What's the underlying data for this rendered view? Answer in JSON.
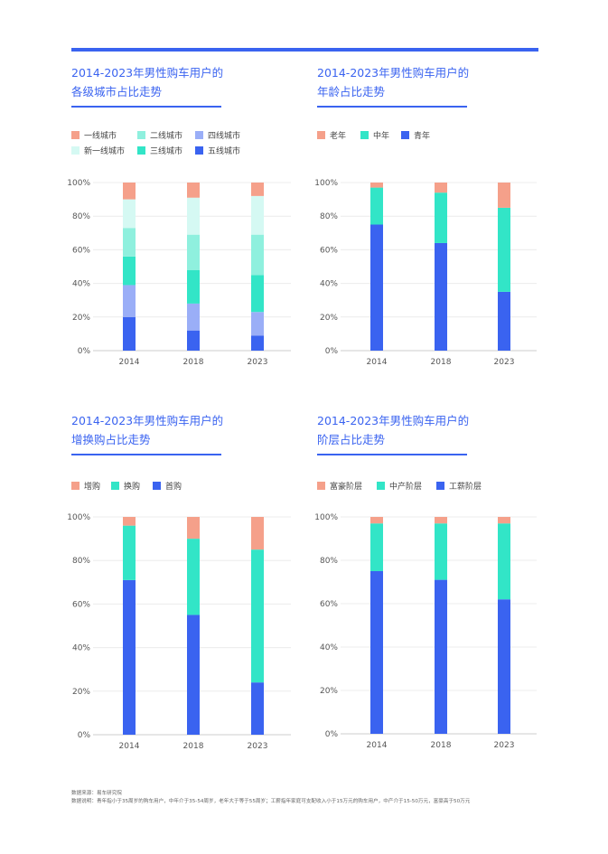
{
  "colors": {
    "accent": "#3a63f0",
    "tier1": "#f5a08a",
    "tier_new1": "#d5f9f3",
    "tier2": "#8ff0de",
    "tier3": "#32e5c7",
    "tier4": "#9aaef7",
    "tier5": "#3a63f0"
  },
  "footer": {
    "source": "数据来源：易车研究院",
    "note": "数据说明：青年指小于35周岁的购车用户，中年介于35-54周岁，老年大于等于55周岁；工薪指年家庭可支配收入小于15万元的购车用户，中产介于15-50万元，富豪高于50万元"
  },
  "charts": [
    {
      "title_line1": "2014-2023年男性购车用户的",
      "title_line2": "各级城市占比走势",
      "legend": [
        {
          "label": "一线城市",
          "color": "#f5a08a"
        },
        {
          "label": "二线城市",
          "color": "#8ff0de"
        },
        {
          "label": "四线城市",
          "color": "#9aaef7"
        },
        {
          "label": "新一线城市",
          "color": "#d5f9f3"
        },
        {
          "label": "三线城市",
          "color": "#32e5c7"
        },
        {
          "label": "五线城市",
          "color": "#3a63f0"
        }
      ],
      "yticks": [
        "100%",
        "80%",
        "60%",
        "40%",
        "20%",
        "0%"
      ],
      "categories": [
        "2014",
        "2018",
        "2023"
      ]
    },
    {
      "title_line1": "2014-2023年男性购车用户的",
      "title_line2": "年龄占比走势",
      "legend": [
        {
          "label": "老年",
          "color": "#f5a08a"
        },
        {
          "label": "中年",
          "color": "#32e5c7"
        },
        {
          "label": "青年",
          "color": "#3a63f0"
        }
      ],
      "yticks": [
        "100%",
        "80%",
        "60%",
        "40%",
        "20%",
        "0%"
      ],
      "categories": [
        "2014",
        "2018",
        "2023"
      ]
    },
    {
      "title_line1": "2014-2023年男性购车用户的",
      "title_line2": "增换购占比走势",
      "legend": [
        {
          "label": "增购",
          "color": "#f5a08a"
        },
        {
          "label": "换购",
          "color": "#32e5c7"
        },
        {
          "label": "首购",
          "color": "#3a63f0"
        }
      ],
      "yticks": [
        "100%",
        "80%",
        "60%",
        "40%",
        "20%",
        "0%"
      ],
      "categories": [
        "2014",
        "2018",
        "2023"
      ]
    },
    {
      "title_line1": "2014-2023年男性购车用户的",
      "title_line2": "阶层占比走势",
      "legend": [
        {
          "label": "富豪阶层",
          "color": "#f5a08a"
        },
        {
          "label": "中产阶层",
          "color": "#32e5c7"
        },
        {
          "label": "工薪阶层",
          "color": "#3a63f0"
        }
      ],
      "yticks": [
        "100%",
        "80%",
        "60%",
        "40%",
        "20%",
        "0%"
      ],
      "categories": [
        "2014",
        "2018",
        "2023"
      ]
    }
  ],
  "chart_data": [
    {
      "type": "bar",
      "stacked": true,
      "categories": [
        "2014",
        "2018",
        "2023"
      ],
      "ylim": [
        0,
        100
      ],
      "series": [
        {
          "name": "五线城市",
          "color": "#3a63f0",
          "values": [
            20,
            12,
            9
          ]
        },
        {
          "name": "四线城市",
          "color": "#9aaef7",
          "values": [
            19,
            16,
            14
          ]
        },
        {
          "name": "三线城市",
          "color": "#32e5c7",
          "values": [
            17,
            20,
            22
          ]
        },
        {
          "name": "二线城市",
          "color": "#8ff0de",
          "values": [
            17,
            21,
            24
          ]
        },
        {
          "name": "新一线城市",
          "color": "#d5f9f3",
          "values": [
            17,
            22,
            23
          ]
        },
        {
          "name": "一线城市",
          "color": "#f5a08a",
          "values": [
            10,
            9,
            8
          ]
        }
      ]
    },
    {
      "type": "bar",
      "stacked": true,
      "categories": [
        "2014",
        "2018",
        "2023"
      ],
      "ylim": [
        0,
        100
      ],
      "series": [
        {
          "name": "青年",
          "color": "#3a63f0",
          "values": [
            75,
            64,
            35
          ]
        },
        {
          "name": "中年",
          "color": "#32e5c7",
          "values": [
            22,
            30,
            50
          ]
        },
        {
          "name": "老年",
          "color": "#f5a08a",
          "values": [
            3,
            6,
            15
          ]
        }
      ]
    },
    {
      "type": "bar",
      "stacked": true,
      "categories": [
        "2014",
        "2018",
        "2023"
      ],
      "ylim": [
        0,
        100
      ],
      "series": [
        {
          "name": "首购",
          "color": "#3a63f0",
          "values": [
            71,
            55,
            24
          ]
        },
        {
          "name": "换购",
          "color": "#32e5c7",
          "values": [
            25,
            35,
            61
          ]
        },
        {
          "name": "增购",
          "color": "#f5a08a",
          "values": [
            4,
            10,
            15
          ]
        }
      ]
    },
    {
      "type": "bar",
      "stacked": true,
      "categories": [
        "2014",
        "2018",
        "2023"
      ],
      "ylim": [
        0,
        100
      ],
      "series": [
        {
          "name": "工薪阶层",
          "color": "#3a63f0",
          "values": [
            75,
            71,
            62
          ]
        },
        {
          "name": "中产阶层",
          "color": "#32e5c7",
          "values": [
            22,
            26,
            35
          ]
        },
        {
          "name": "富豪阶层",
          "color": "#f5a08a",
          "values": [
            3,
            3,
            3
          ]
        }
      ]
    }
  ]
}
